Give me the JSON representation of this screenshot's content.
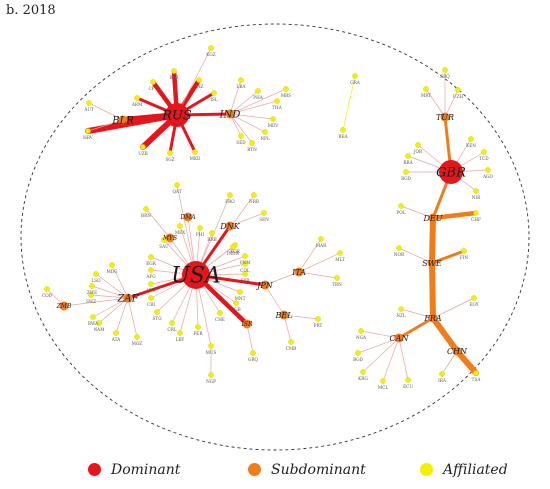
{
  "title": "b. 2018",
  "colors": {
    "dominant": "#e8141b",
    "subdominant": "#f07d1a",
    "affiliated": "#f5f000",
    "edge_main": "#e8141b",
    "edge_sub": "#f07d1a",
    "edge_light": "#e7a6a0"
  },
  "legend": [
    {
      "label": "Dominant",
      "role": "dominant"
    },
    {
      "label": "Subdominant",
      "role": "subdominant"
    },
    {
      "label": "Affiliated",
      "role": "affiliated"
    }
  ],
  "nodes": [
    {
      "id": "USA",
      "role": "dominant",
      "label_size": "xl"
    },
    {
      "id": "RUS",
      "role": "dominant",
      "label_size": "lg"
    },
    {
      "id": "GBR",
      "role": "dominant",
      "label_size": "lg"
    },
    {
      "id": "IND",
      "role": "subdominant",
      "label_size": "md"
    },
    {
      "id": "BLR",
      "role": "subdominant",
      "label_size": "md"
    },
    {
      "id": "ZAF",
      "role": "subdominant",
      "label_size": "md"
    },
    {
      "id": "DNK",
      "role": "subdominant",
      "label_size": "sm"
    },
    {
      "id": "TUR",
      "role": "subdominant",
      "label_size": "sm"
    },
    {
      "id": "DEU",
      "role": "subdominant",
      "label_size": "sm"
    },
    {
      "id": "SWE",
      "role": "subdominant",
      "label_size": "sm"
    },
    {
      "id": "FRA",
      "role": "subdominant",
      "label_size": "sm"
    },
    {
      "id": "CAN",
      "role": "subdominant",
      "label_size": "sm"
    },
    {
      "id": "CHN",
      "role": "subdominant",
      "label_size": "sm"
    },
    {
      "id": "ITA",
      "role": "subdominant",
      "label_size": "sm"
    },
    {
      "id": "JPN",
      "role": "subdominant",
      "label_size": "sm"
    },
    {
      "id": "BEL",
      "role": "subdominant",
      "label_size": "sm"
    },
    {
      "id": "ZMB",
      "role": "subdominant",
      "label_size": "xs"
    },
    {
      "id": "MYS",
      "role": "subdominant",
      "label_size": "xs"
    },
    {
      "id": "ISR",
      "role": "subdominant",
      "label_size": "xs"
    },
    {
      "id": "DMA",
      "role": "subdominant",
      "label_size": "xs"
    },
    {
      "id": "KGZ",
      "role": "affiliated"
    },
    {
      "id": "BLR2",
      "label": "BLR",
      "role": "affiliated"
    },
    {
      "id": "CPV",
      "role": "affiliated"
    },
    {
      "id": "ARM",
      "role": "affiliated"
    },
    {
      "id": "KAZ",
      "role": "affiliated"
    },
    {
      "id": "AUT",
      "role": "affiliated"
    },
    {
      "id": "HRV",
      "role": "affiliated"
    },
    {
      "id": "UZB",
      "role": "affiliated"
    },
    {
      "id": "SGZ",
      "role": "affiliated"
    },
    {
      "id": "MKD",
      "role": "affiliated"
    },
    {
      "id": "ISL",
      "role": "affiliated"
    },
    {
      "id": "LBA",
      "role": "affiliated"
    },
    {
      "id": "PHA",
      "role": "affiliated"
    },
    {
      "id": "MRS",
      "role": "affiliated"
    },
    {
      "id": "THA",
      "role": "affiliated"
    },
    {
      "id": "MDV",
      "role": "affiliated"
    },
    {
      "id": "NPL",
      "role": "affiliated"
    },
    {
      "id": "BTN",
      "role": "affiliated"
    },
    {
      "id": "SED",
      "role": "affiliated"
    },
    {
      "id": "GRA",
      "role": "affiliated"
    },
    {
      "id": "BEA",
      "role": "affiliated"
    },
    {
      "id": "SRQ",
      "role": "affiliated"
    },
    {
      "id": "MRT",
      "role": "affiliated"
    },
    {
      "id": "UZH",
      "role": "affiliated"
    },
    {
      "id": "JOR",
      "role": "affiliated"
    },
    {
      "id": "KEN",
      "role": "affiliated"
    },
    {
      "id": "RRA",
      "role": "affiliated"
    },
    {
      "id": "TCD",
      "role": "affiliated"
    },
    {
      "id": "RGD",
      "role": "affiliated"
    },
    {
      "id": "AGO",
      "role": "affiliated"
    },
    {
      "id": "NIR",
      "role": "affiliated"
    },
    {
      "id": "POL",
      "role": "affiliated"
    },
    {
      "id": "CHF",
      "role": "affiliated"
    },
    {
      "id": "NOR",
      "role": "affiliated"
    },
    {
      "id": "FIN",
      "role": "affiliated"
    },
    {
      "id": "NZL",
      "role": "affiliated"
    },
    {
      "id": "EGY",
      "role": "affiliated"
    },
    {
      "id": "NGA",
      "role": "affiliated"
    },
    {
      "id": "BGD",
      "role": "affiliated"
    },
    {
      "id": "KRG",
      "role": "affiliated"
    },
    {
      "id": "MCL",
      "role": "affiliated"
    },
    {
      "id": "ECU",
      "role": "affiliated"
    },
    {
      "id": "IRA",
      "role": "affiliated"
    },
    {
      "id": "TSA",
      "role": "affiliated"
    },
    {
      "id": "QAT",
      "role": "affiliated"
    },
    {
      "id": "FRO",
      "role": "affiliated"
    },
    {
      "id": "NRB",
      "role": "affiliated"
    },
    {
      "id": "SEN",
      "role": "affiliated"
    },
    {
      "id": "BRN",
      "role": "affiliated"
    },
    {
      "id": "MEX",
      "role": "affiliated"
    },
    {
      "id": "PHI",
      "role": "affiliated"
    },
    {
      "id": "RRB",
      "role": "affiliated"
    },
    {
      "id": "SAU",
      "role": "affiliated"
    },
    {
      "id": "EGR",
      "role": "affiliated"
    },
    {
      "id": "KOR",
      "role": "affiliated"
    },
    {
      "id": "INDN",
      "role": "affiliated"
    },
    {
      "id": "VNM",
      "role": "affiliated"
    },
    {
      "id": "COL",
      "role": "affiliated"
    },
    {
      "id": "AFG",
      "role": "affiliated"
    },
    {
      "id": "LTU",
      "role": "affiliated"
    },
    {
      "id": "CRI",
      "role": "affiliated"
    },
    {
      "id": "SYR",
      "role": "affiliated"
    },
    {
      "id": "MNT",
      "role": "affiliated"
    },
    {
      "id": "VGB",
      "role": "affiliated"
    },
    {
      "id": "STO",
      "role": "affiliated"
    },
    {
      "id": "CRL",
      "role": "affiliated"
    },
    {
      "id": "LBY",
      "role": "affiliated"
    },
    {
      "id": "PER",
      "role": "affiliated"
    },
    {
      "id": "CHE",
      "role": "affiliated"
    },
    {
      "id": "GRQ",
      "role": "affiliated"
    },
    {
      "id": "NGP",
      "role": "affiliated"
    },
    {
      "id": "MAR",
      "role": "affiliated"
    },
    {
      "id": "MLT",
      "role": "affiliated"
    },
    {
      "id": "TRN",
      "role": "affiliated"
    },
    {
      "id": "PRT",
      "role": "affiliated"
    },
    {
      "id": "CMR",
      "role": "affiliated"
    },
    {
      "id": "COD",
      "role": "affiliated"
    },
    {
      "id": "MUS",
      "role": "affiliated"
    },
    {
      "id": "LSO",
      "role": "affiliated"
    },
    {
      "id": "ZWE",
      "role": "affiliated"
    },
    {
      "id": "SWZ",
      "role": "affiliated"
    },
    {
      "id": "BWA",
      "role": "affiliated"
    },
    {
      "id": "NAM",
      "role": "affiliated"
    },
    {
      "id": "ATA",
      "role": "affiliated"
    },
    {
      "id": "MOZ",
      "role": "affiliated"
    },
    {
      "id": "MDG",
      "role": "affiliated"
    }
  ],
  "edges": [
    {
      "s": "RUS",
      "t": "BLR",
      "w": 4
    },
    {
      "s": "RUS",
      "t": "KAZ",
      "w": 3
    },
    {
      "s": "RUS",
      "t": "CPV",
      "w": 3
    },
    {
      "s": "RUS",
      "t": "BLR2",
      "w": 3
    },
    {
      "s": "RUS",
      "t": "ARM",
      "w": 2
    },
    {
      "s": "RUS",
      "t": "SGZ",
      "w": 2
    },
    {
      "s": "RUS",
      "t": "UZB",
      "w": 4
    },
    {
      "s": "RUS",
      "t": "HRV",
      "w": 4
    },
    {
      "s": "RUS",
      "t": "ISL",
      "w": 2
    },
    {
      "s": "RUS",
      "t": "MKD",
      "w": 2
    },
    {
      "s": "RUS",
      "t": "IND",
      "w": 2
    },
    {
      "s": "RUS",
      "t": "KGZ",
      "w": 1
    },
    {
      "s": "BLR",
      "t": "AUT",
      "w": 1
    },
    {
      "s": "BLR",
      "t": "HRV",
      "w": 1
    },
    {
      "s": "IND",
      "t": "LBA",
      "w": 1
    },
    {
      "s": "IND",
      "t": "PHA",
      "w": 1
    },
    {
      "s": "IND",
      "t": "MRS",
      "w": 1
    },
    {
      "s": "IND",
      "t": "THA",
      "w": 1
    },
    {
      "s": "IND",
      "t": "MDV",
      "w": 1
    },
    {
      "s": "IND",
      "t": "NPL",
      "w": 1
    },
    {
      "s": "IND",
      "t": "BTN",
      "w": 1
    },
    {
      "s": "IND",
      "t": "SED",
      "w": 1
    },
    {
      "s": "GRA",
      "t": "BEA",
      "w": 1
    },
    {
      "s": "TUR",
      "t": "SRQ",
      "w": 1
    },
    {
      "s": "TUR",
      "t": "MRT",
      "w": 1
    },
    {
      "s": "TUR",
      "t": "UZH",
      "w": 1
    },
    {
      "s": "TUR",
      "t": "GBR",
      "w": 2
    },
    {
      "s": "GBR",
      "t": "JOR",
      "w": 1
    },
    {
      "s": "GBR",
      "t": "KEN",
      "w": 1
    },
    {
      "s": "GBR",
      "t": "RRA",
      "w": 1
    },
    {
      "s": "GBR",
      "t": "TCD",
      "w": 1
    },
    {
      "s": "GBR",
      "t": "RGD",
      "w": 1
    },
    {
      "s": "GBR",
      "t": "AGO",
      "w": 1
    },
    {
      "s": "GBR",
      "t": "NIR",
      "w": 1
    },
    {
      "s": "GBR",
      "t": "DEU",
      "w": 2
    },
    {
      "s": "DEU",
      "t": "POL",
      "w": 1
    },
    {
      "s": "DEU",
      "t": "CHF",
      "w": 3
    },
    {
      "s": "DEU",
      "t": "SWE",
      "w": 4
    },
    {
      "s": "SWE",
      "t": "NOR",
      "w": 1
    },
    {
      "s": "SWE",
      "t": "FIN",
      "w": 2
    },
    {
      "s": "SWE",
      "t": "FRA",
      "w": 4
    },
    {
      "s": "FRA",
      "t": "NZL",
      "w": 1
    },
    {
      "s": "FRA",
      "t": "EGY",
      "w": 1
    },
    {
      "s": "FRA",
      "t": "CAN",
      "w": 2
    },
    {
      "s": "FRA",
      "t": "CHN",
      "w": 4
    },
    {
      "s": "CHN",
      "t": "IRA",
      "w": 1
    },
    {
      "s": "CHN",
      "t": "TSA",
      "w": 4
    },
    {
      "s": "CAN",
      "t": "NGA",
      "w": 1
    },
    {
      "s": "CAN",
      "t": "BGD",
      "w": 1
    },
    {
      "s": "CAN",
      "t": "KRG",
      "w": 1
    },
    {
      "s": "CAN",
      "t": "MCL",
      "w": 1
    },
    {
      "s": "CAN",
      "t": "ECU",
      "w": 1
    },
    {
      "s": "USA",
      "t": "QAT",
      "w": 1
    },
    {
      "s": "USA",
      "t": "DMA",
      "w": 1
    },
    {
      "s": "USA",
      "t": "FRO",
      "w": 1
    },
    {
      "s": "USA",
      "t": "NRB",
      "w": 1
    },
    {
      "s": "USA",
      "t": "DNK",
      "w": 2
    },
    {
      "s": "USA",
      "t": "MYS",
      "w": 1
    },
    {
      "s": "USA",
      "t": "MEX",
      "w": 1
    },
    {
      "s": "USA",
      "t": "PHI",
      "w": 1
    },
    {
      "s": "USA",
      "t": "RRB",
      "w": 1
    },
    {
      "s": "USA",
      "t": "SAU",
      "w": 1
    },
    {
      "s": "USA",
      "t": "EGR",
      "w": 1
    },
    {
      "s": "USA",
      "t": "KOR",
      "w": 1
    },
    {
      "s": "USA",
      "t": "INDN",
      "w": 1
    },
    {
      "s": "USA",
      "t": "VNM",
      "w": 1
    },
    {
      "s": "USA",
      "t": "COL",
      "w": 1
    },
    {
      "s": "USA",
      "t": "AFG",
      "w": 1
    },
    {
      "s": "USA",
      "t": "LTU",
      "w": 1
    },
    {
      "s": "USA",
      "t": "CRI",
      "w": 1
    },
    {
      "s": "USA",
      "t": "SYR",
      "w": 1
    },
    {
      "s": "USA",
      "t": "MNT",
      "w": 1
    },
    {
      "s": "USA",
      "t": "VGB",
      "w": 1
    },
    {
      "s": "USA",
      "t": "STO",
      "w": 1
    },
    {
      "s": "USA",
      "t": "CRL",
      "w": 1
    },
    {
      "s": "USA",
      "t": "LBY",
      "w": 1
    },
    {
      "s": "USA",
      "t": "PER",
      "w": 1
    },
    {
      "s": "USA",
      "t": "CHE",
      "w": 1
    },
    {
      "s": "USA",
      "t": "ISR",
      "w": 3
    },
    {
      "s": "USA",
      "t": "MUS",
      "w": 1
    },
    {
      "s": "USA",
      "t": "JPN",
      "w": 2
    },
    {
      "s": "USA",
      "t": "ZAF",
      "w": 2
    },
    {
      "s": "DNK",
      "t": "SEN",
      "w": 1
    },
    {
      "s": "MYS",
      "t": "BRN",
      "w": 1
    },
    {
      "s": "ISR",
      "t": "GRQ",
      "w": 1
    },
    {
      "s": "MUS",
      "t": "NGP",
      "w": 1
    },
    {
      "s": "JPN",
      "t": "ITA",
      "w": 1
    },
    {
      "s": "JPN",
      "t": "BEL",
      "w": 1
    },
    {
      "s": "ITA",
      "t": "MAR",
      "w": 1
    },
    {
      "s": "ITA",
      "t": "MLT",
      "w": 1
    },
    {
      "s": "ITA",
      "t": "TRN",
      "w": 1
    },
    {
      "s": "BEL",
      "t": "PRT",
      "w": 1
    },
    {
      "s": "BEL",
      "t": "CMR",
      "w": 1
    },
    {
      "s": "ZAF",
      "t": "ZMB",
      "w": 1
    },
    {
      "s": "ZMB",
      "t": "COD",
      "w": 1
    },
    {
      "s": "ZAF",
      "t": "MDG",
      "w": 1
    },
    {
      "s": "ZAF",
      "t": "LSO",
      "w": 1
    },
    {
      "s": "ZAF",
      "t": "ZWE",
      "w": 1
    },
    {
      "s": "ZAF",
      "t": "SWZ",
      "w": 1
    },
    {
      "s": "ZAF",
      "t": "BWA",
      "w": 1
    },
    {
      "s": "ZAF",
      "t": "NAM",
      "w": 1
    },
    {
      "s": "ZAF",
      "t": "ATA",
      "w": 1
    },
    {
      "s": "ZAF",
      "t": "MOZ",
      "w": 1
    }
  ]
}
